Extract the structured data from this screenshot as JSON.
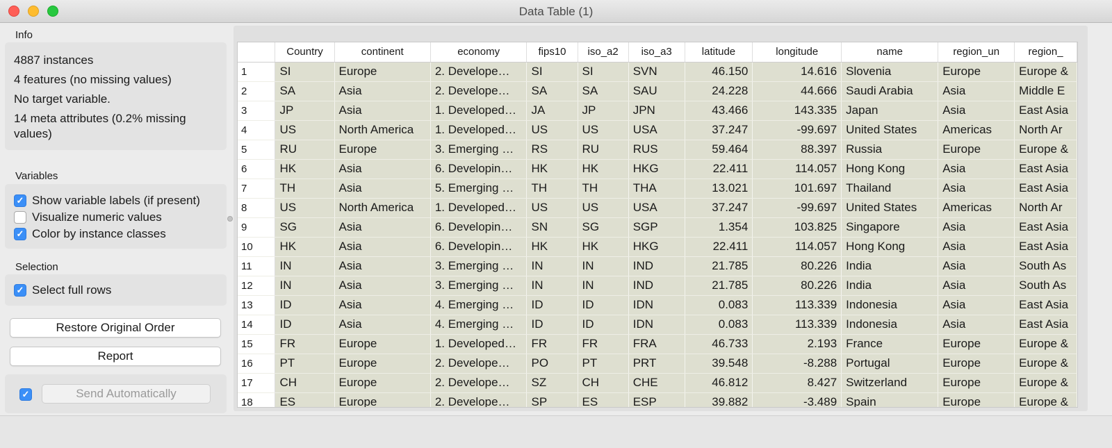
{
  "window": {
    "title": "Data Table (1)"
  },
  "info": {
    "label": "Info",
    "lines": [
      "4887 instances",
      "4 features (no missing values)",
      "No target variable.",
      "14 meta attributes (0.2% missing",
      "values)"
    ]
  },
  "variables": {
    "label": "Variables",
    "options": [
      {
        "label": "Show variable labels (if present)",
        "checked": true
      },
      {
        "label": "Visualize numeric values",
        "checked": false
      },
      {
        "label": "Color by instance classes",
        "checked": true
      }
    ]
  },
  "selection": {
    "label": "Selection",
    "options": [
      {
        "label": "Select full rows",
        "checked": true
      }
    ]
  },
  "buttons": {
    "restore": "Restore Original Order",
    "report": "Report",
    "send_auto": "Send Automatically",
    "send_auto_checked": true
  },
  "colors": {
    "checkbox_accent": "#3b8ff7",
    "row_bg": "#dedfd0"
  },
  "table": {
    "columns": [
      "Country",
      "continent",
      "economy",
      "fips10",
      "iso_a2",
      "iso_a3",
      "latitude",
      "longitude",
      "name",
      "region_un",
      "region_"
    ],
    "rows": [
      [
        "1",
        "SI",
        "Europe",
        "2. Develope…",
        "SI",
        "SI",
        "SVN",
        "46.150",
        "14.616",
        "Slovenia",
        "Europe",
        "Europe &"
      ],
      [
        "2",
        "SA",
        "Asia",
        "2. Develope…",
        "SA",
        "SA",
        "SAU",
        "24.228",
        "44.666",
        "Saudi Arabia",
        "Asia",
        "Middle E"
      ],
      [
        "3",
        "JP",
        "Asia",
        "1. Developed…",
        "JA",
        "JP",
        "JPN",
        "43.466",
        "143.335",
        "Japan",
        "Asia",
        "East Asia"
      ],
      [
        "4",
        "US",
        "North America",
        "1. Developed…",
        "US",
        "US",
        "USA",
        "37.247",
        "-99.697",
        "United States",
        "Americas",
        "North Ar"
      ],
      [
        "5",
        "RU",
        "Europe",
        "3. Emerging …",
        "RS",
        "RU",
        "RUS",
        "59.464",
        "88.397",
        "Russia",
        "Europe",
        "Europe &"
      ],
      [
        "6",
        "HK",
        "Asia",
        "6. Developin…",
        "HK",
        "HK",
        "HKG",
        "22.411",
        "114.057",
        "Hong Kong",
        "Asia",
        "East Asia"
      ],
      [
        "7",
        "TH",
        "Asia",
        "5. Emerging …",
        "TH",
        "TH",
        "THA",
        "13.021",
        "101.697",
        "Thailand",
        "Asia",
        "East Asia"
      ],
      [
        "8",
        "US",
        "North America",
        "1. Developed…",
        "US",
        "US",
        "USA",
        "37.247",
        "-99.697",
        "United States",
        "Americas",
        "North Ar"
      ],
      [
        "9",
        "SG",
        "Asia",
        "6. Developin…",
        "SN",
        "SG",
        "SGP",
        "1.354",
        "103.825",
        "Singapore",
        "Asia",
        "East Asia"
      ],
      [
        "10",
        "HK",
        "Asia",
        "6. Developin…",
        "HK",
        "HK",
        "HKG",
        "22.411",
        "114.057",
        "Hong Kong",
        "Asia",
        "East Asia"
      ],
      [
        "11",
        "IN",
        "Asia",
        "3. Emerging …",
        "IN",
        "IN",
        "IND",
        "21.785",
        "80.226",
        "India",
        "Asia",
        "South As"
      ],
      [
        "12",
        "IN",
        "Asia",
        "3. Emerging …",
        "IN",
        "IN",
        "IND",
        "21.785",
        "80.226",
        "India",
        "Asia",
        "South As"
      ],
      [
        "13",
        "ID",
        "Asia",
        "4. Emerging …",
        "ID",
        "ID",
        "IDN",
        "0.083",
        "113.339",
        "Indonesia",
        "Asia",
        "East Asia"
      ],
      [
        "14",
        "ID",
        "Asia",
        "4. Emerging …",
        "ID",
        "ID",
        "IDN",
        "0.083",
        "113.339",
        "Indonesia",
        "Asia",
        "East Asia"
      ],
      [
        "15",
        "FR",
        "Europe",
        "1. Developed…",
        "FR",
        "FR",
        "FRA",
        "46.733",
        "2.193",
        "France",
        "Europe",
        "Europe &"
      ],
      [
        "16",
        "PT",
        "Europe",
        "2. Develope…",
        "PO",
        "PT",
        "PRT",
        "39.548",
        "-8.288",
        "Portugal",
        "Europe",
        "Europe &"
      ],
      [
        "17",
        "CH",
        "Europe",
        "2. Develope…",
        "SZ",
        "CH",
        "CHE",
        "46.812",
        "8.427",
        "Switzerland",
        "Europe",
        "Europe &"
      ],
      [
        "18",
        "ES",
        "Europe",
        "2. Develope…",
        "SP",
        "ES",
        "ESP",
        "39.882",
        "-3.489",
        "Spain",
        "Europe",
        "Europe &"
      ]
    ]
  }
}
